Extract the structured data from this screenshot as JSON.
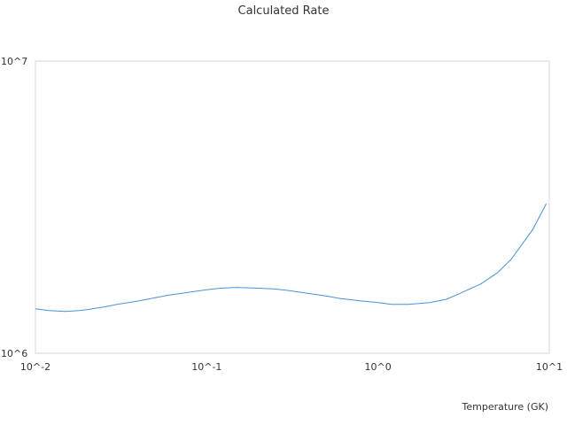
{
  "chart_data": {
    "type": "line",
    "title": "Calculated Rate",
    "xlabel": "Temperature (GK)",
    "ylabel": "",
    "x_scale": "log",
    "y_scale": "log",
    "xlim": [
      0.01,
      10
    ],
    "ylim": [
      1000000,
      10000000
    ],
    "x_ticks": [
      {
        "value": 0.01,
        "label": "10^-2"
      },
      {
        "value": 0.1,
        "label": "10^-1"
      },
      {
        "value": 1,
        "label": "10^0"
      },
      {
        "value": 10,
        "label": "10^1"
      }
    ],
    "y_ticks": [
      {
        "value": 1000000,
        "label": "10^6"
      },
      {
        "value": 10000000,
        "label": "10^7"
      }
    ],
    "grid": false,
    "legend": "none",
    "colors": {
      "line": "#4a90d9",
      "frame": "#d6d6d6",
      "text": "#333333"
    },
    "series": [
      {
        "x": [
          0.01,
          0.012,
          0.015,
          0.018,
          0.02,
          0.025,
          0.03,
          0.04,
          0.05,
          0.06,
          0.08,
          0.1,
          0.12,
          0.15,
          0.2,
          0.25,
          0.3,
          0.4,
          0.5,
          0.6,
          0.8,
          1.0,
          1.2,
          1.5,
          2.0,
          2.5,
          3.0,
          4.0,
          5.0,
          6.0,
          8.0,
          9.6
        ],
        "y": [
          1420000,
          1400000,
          1390000,
          1400000,
          1410000,
          1440000,
          1470000,
          1510000,
          1550000,
          1580000,
          1620000,
          1650000,
          1670000,
          1680000,
          1670000,
          1660000,
          1640000,
          1600000,
          1570000,
          1540000,
          1510000,
          1490000,
          1470000,
          1470000,
          1490000,
          1530000,
          1600000,
          1730000,
          1890000,
          2100000,
          2650000,
          3250000
        ]
      }
    ]
  }
}
